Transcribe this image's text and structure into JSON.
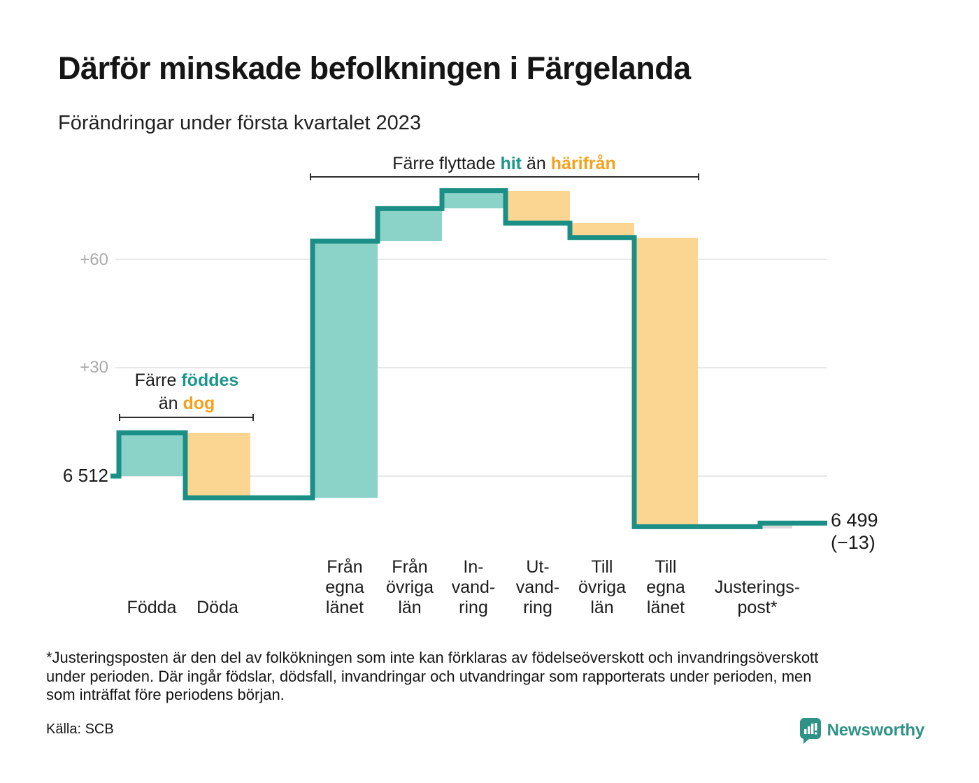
{
  "title": "Därför minskade befolkningen i Färgelanda",
  "subtitle": "Förändringar under första kvartalet 2023",
  "annotations": {
    "moves": {
      "prefix": "Färre flyttade ",
      "highlight1": "hit",
      "middle": " än ",
      "highlight2": "härifrån"
    },
    "births": {
      "prefix": "Färre ",
      "highlight1": "föddes",
      "middle": "än ",
      "highlight2": "dog"
    }
  },
  "y_axis": {
    "tick_labels": [
      "+60",
      "+30"
    ],
    "start_label": "6 512"
  },
  "end_label": {
    "value": "6 499",
    "change": "(−13)"
  },
  "footnote": {
    "lines": [
      "*Justeringsposten är den del av folkökningen som inte kan förklaras av födelseöverskott och invandringsöverskott",
      "under perioden. Där ingår födslar, dödsfall, invandringar och utvandringar som rapporterats under perioden, men",
      "som inträffat före periodens början."
    ]
  },
  "source": "Källa: SCB",
  "logo": {
    "text": "Newsworthy"
  },
  "colors": {
    "increase_fill": "#8BD2C9",
    "decrease_fill": "#FBD693",
    "adjustment_fill": "#D9D9D9",
    "step_line": "#1B8F85",
    "accent_teal": "#1A968B",
    "accent_orange": "#F5A11B",
    "grid": "#E8E8E8",
    "logo_teal": "#2F9287"
  },
  "chart_data": {
    "type": "bar",
    "variant": "waterfall",
    "title": "Därför minskade befolkningen i Färgelanda",
    "subtitle": "Förändringar under första kvartalet 2023",
    "start_value": 6512,
    "end_value": 6499,
    "total_change": -13,
    "y_ticks_offsets": [
      60,
      30,
      0
    ],
    "grid": true,
    "legend": "none",
    "steps": [
      {
        "category": "Födda",
        "label_lines": [
          "Födda"
        ],
        "value": 12,
        "kind": "increase"
      },
      {
        "category": "Döda",
        "label_lines": [
          "Döda"
        ],
        "value": -18,
        "kind": "decrease"
      },
      {
        "category": "Från egna länet",
        "label_lines": [
          "Från",
          "egna",
          "länet"
        ],
        "value": 71,
        "kind": "increase"
      },
      {
        "category": "Från övriga län",
        "label_lines": [
          "Från",
          "övriga",
          "län"
        ],
        "value": 9,
        "kind": "increase"
      },
      {
        "category": "Invandring",
        "label_lines": [
          "In-",
          "vand-",
          "ring"
        ],
        "value": 5,
        "kind": "increase"
      },
      {
        "category": "Utvandring",
        "label_lines": [
          "Ut-",
          "vand-",
          "ring"
        ],
        "value": -9,
        "kind": "decrease"
      },
      {
        "category": "Till övriga län",
        "label_lines": [
          "Till",
          "övriga",
          "län"
        ],
        "value": -4,
        "kind": "decrease"
      },
      {
        "category": "Till egna länet",
        "label_lines": [
          "Till",
          "egna",
          "länet"
        ],
        "value": -80,
        "kind": "decrease"
      },
      {
        "category": "Justeringspost",
        "label_lines": [
          "Justerings-",
          "post*"
        ],
        "value": 1,
        "kind": "adjustment"
      }
    ]
  }
}
